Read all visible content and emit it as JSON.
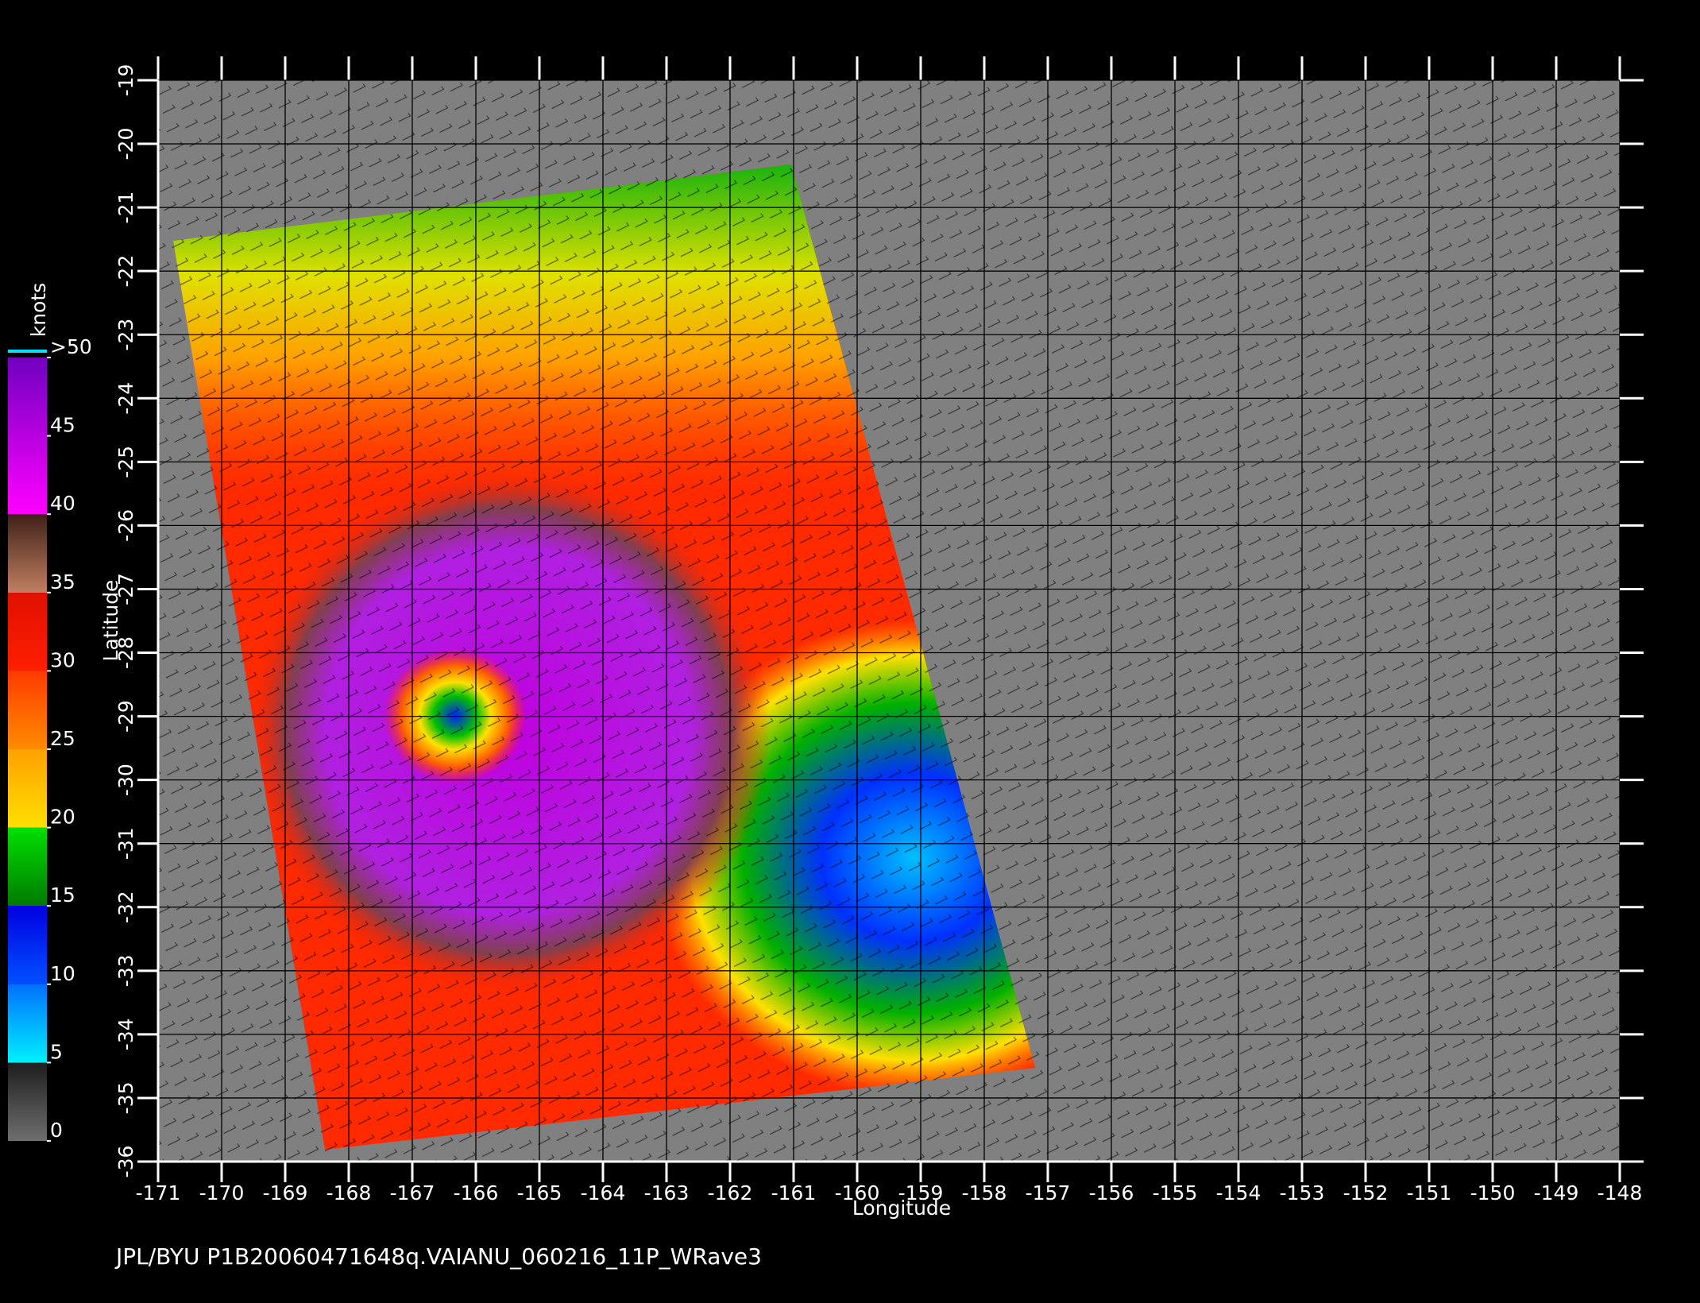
{
  "chart_data": {
    "type": "map",
    "xlabel": "Longitude",
    "ylabel": "Latitude",
    "footer": "JPL/BYU  P1B20060471648q.VAIANU_060216_11P_WRave3",
    "xlim": [
      -171,
      -148
    ],
    "ylim": [
      -36,
      -19
    ],
    "xticks": [
      -171,
      -170,
      -169,
      -168,
      -167,
      -166,
      -165,
      -164,
      -163,
      -162,
      -161,
      -160,
      -159,
      -158,
      -157,
      -156,
      -155,
      -154,
      -153,
      -152,
      -151,
      -150,
      -149,
      -148
    ],
    "yticks": [
      -36,
      -35,
      -34,
      -33,
      -32,
      -31,
      -30,
      -29,
      -28,
      -27,
      -26,
      -25,
      -24,
      -23,
      -22,
      -21,
      -20,
      -19
    ],
    "grid": true,
    "colorbar": {
      "label": "knots",
      "lim": [
        0,
        50
      ],
      "ticks": [
        0,
        5,
        10,
        15,
        20,
        25,
        30,
        35,
        40,
        45,
        {
          "value": 50,
          "label": ">50"
        }
      ]
    }
  }
}
